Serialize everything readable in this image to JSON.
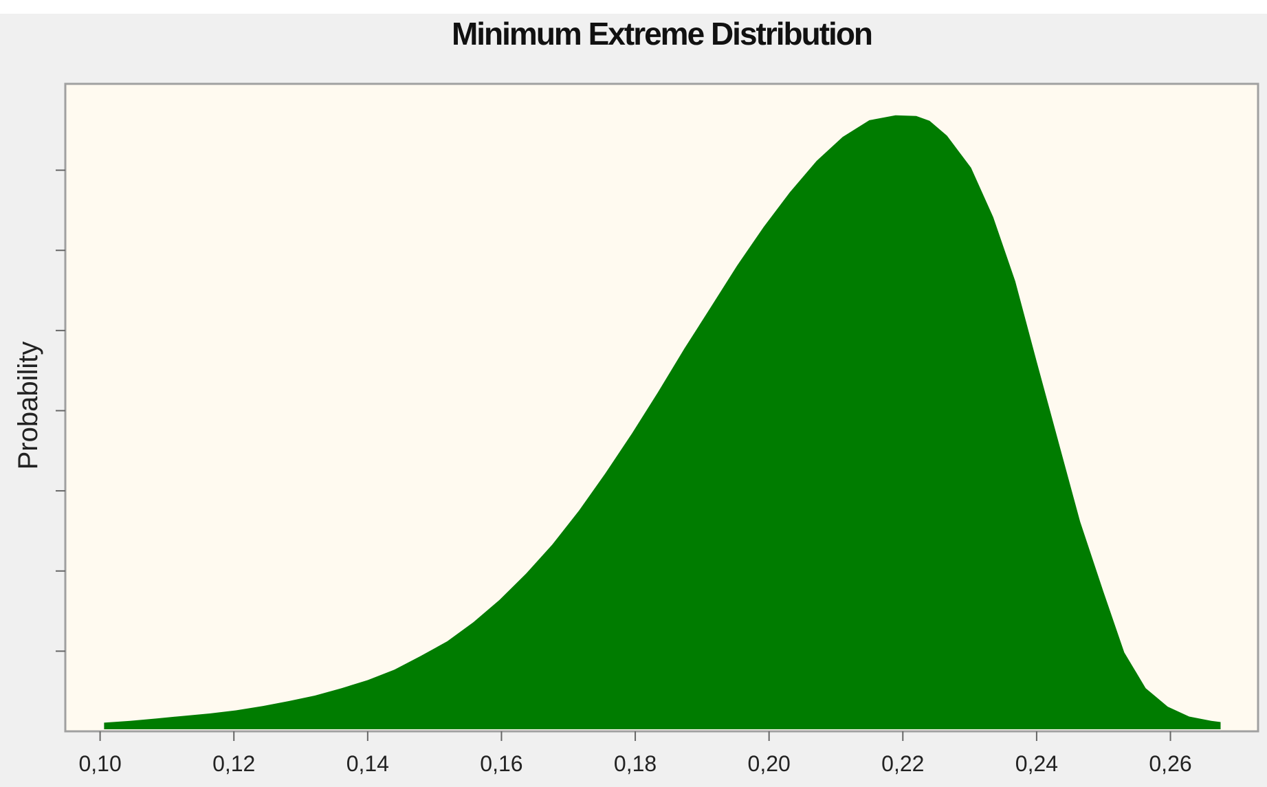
{
  "chart_data": {
    "type": "area",
    "title": "Minimum Extreme Distribution",
    "xlabel": "",
    "ylabel": "Probability",
    "xlim": [
      0.0948,
      0.2731
    ],
    "ylim": [
      0,
      1.05
    ],
    "x_ticks": [
      0.1,
      0.12,
      0.14,
      0.16,
      0.18,
      0.2,
      0.22,
      0.24,
      0.26
    ],
    "x_tick_labels": [
      "0,10",
      "0,12",
      "0,14",
      "0,16",
      "0,18",
      "0,20",
      "0,22",
      "0,24",
      "0,26"
    ],
    "y_ticks": [
      0.13,
      0.26,
      0.39,
      0.52,
      0.65,
      0.78,
      0.91
    ],
    "y_tick_labels_shown": false,
    "grid": false,
    "legend": "none",
    "fill_color": "#007c00",
    "plot_background": "#fffaf0",
    "x": [
      0.1006,
      0.1045,
      0.1085,
      0.1124,
      0.1164,
      0.1203,
      0.1243,
      0.1282,
      0.1321,
      0.1361,
      0.14,
      0.144,
      0.1479,
      0.1519,
      0.1558,
      0.1597,
      0.1637,
      0.1676,
      0.1716,
      0.1755,
      0.1795,
      0.1834,
      0.1873,
      0.1913,
      0.1952,
      0.1992,
      0.2031,
      0.2071,
      0.211,
      0.215,
      0.2189,
      0.222,
      0.224,
      0.2266,
      0.2302,
      0.2335,
      0.2368,
      0.24,
      0.2434,
      0.2465,
      0.25,
      0.2531,
      0.2563,
      0.2596,
      0.2628,
      0.2661,
      0.2675
    ],
    "y": [
      0.014,
      0.017,
      0.021,
      0.025,
      0.029,
      0.034,
      0.041,
      0.049,
      0.058,
      0.07,
      0.083,
      0.1,
      0.122,
      0.146,
      0.177,
      0.213,
      0.256,
      0.303,
      0.358,
      0.418,
      0.483,
      0.55,
      0.62,
      0.688,
      0.755,
      0.818,
      0.874,
      0.925,
      0.964,
      0.991,
      0.999,
      0.998,
      0.99,
      0.966,
      0.914,
      0.834,
      0.73,
      0.6,
      0.464,
      0.34,
      0.226,
      0.128,
      0.07,
      0.04,
      0.024,
      0.017,
      0.015
    ]
  }
}
